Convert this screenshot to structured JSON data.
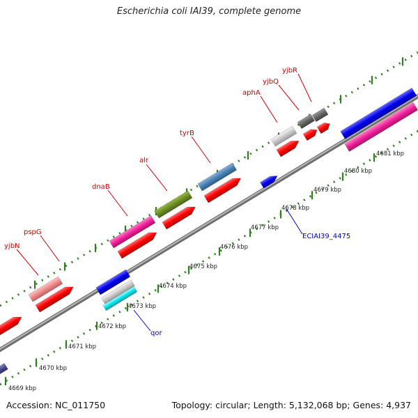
{
  "title": "Escherichia coli IAI39, complete genome",
  "accession": "Accession: NC_011750",
  "summary": "Topology: circular; Length: 5,132,068 bp; Genes: 4,937",
  "colors": {
    "backbone": "#8a8a8a",
    "ticks": "#2e7d1e",
    "label_red": "#cc0000",
    "label_blue": "#0000cc"
  },
  "tick_labels": [
    "4669 kbp",
    "4670 kbp",
    "4671 kbp",
    "4672 kbp",
    "4673 kbp",
    "4674 kbp",
    "4675 kbp",
    "4676 kbp",
    "4677 kbp",
    "4678 kbp",
    "4679 kbp",
    "4680 kbp",
    "4681 kbp"
  ],
  "gene_labels_top": [
    "yjbN",
    "pspG",
    "dnaB",
    "alr",
    "tyrB",
    "aphA",
    "yjbQ",
    "yjbR"
  ],
  "gene_labels_bottom": [
    "qor",
    "ECIAI39_4475"
  ]
}
